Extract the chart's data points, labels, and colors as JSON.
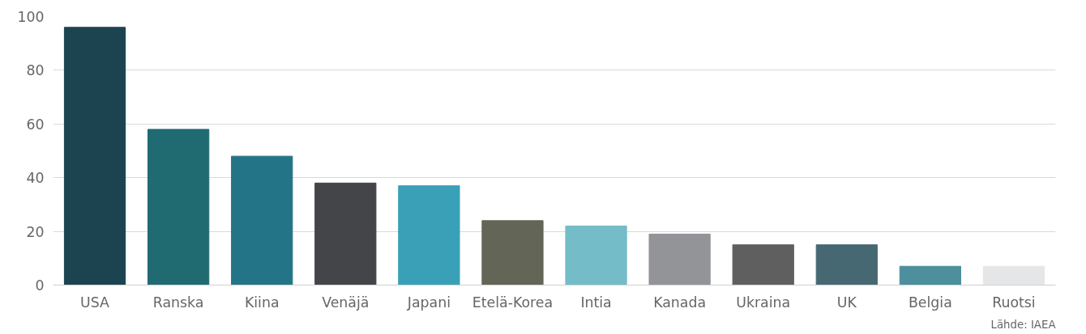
{
  "chart_data": {
    "type": "bar",
    "categories": [
      "USA",
      "Ranska",
      "Kiina",
      "Venäjä",
      "Japani",
      "Etelä-Korea",
      "Intia",
      "Kanada",
      "Ukraina",
      "UK",
      "Belgia",
      "Ruotsi"
    ],
    "values": [
      96,
      58,
      48,
      38,
      37,
      24,
      22,
      19,
      15,
      15,
      7,
      7
    ],
    "colors": [
      "#1c4350",
      "#206a72",
      "#247487",
      "#444548",
      "#3aa0b8",
      "#636656",
      "#74bcc8",
      "#939498",
      "#5f5f60",
      "#466873",
      "#4d8f9c",
      "#e5e6e7"
    ],
    "ylim": [
      0,
      100
    ],
    "yticks": [
      0,
      20,
      40,
      60,
      80,
      100
    ],
    "grid": "y",
    "annotations": [
      "Lähde: IAEA"
    ]
  }
}
